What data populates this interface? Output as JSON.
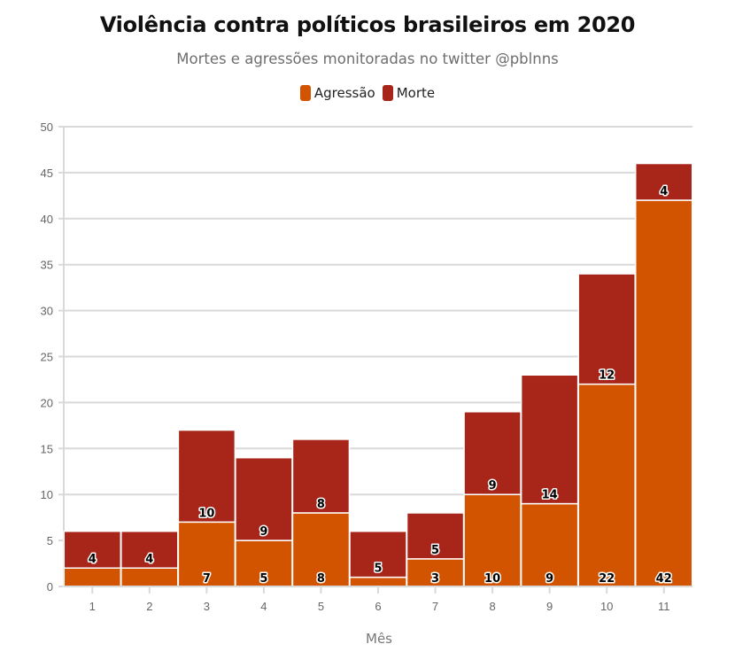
{
  "chart_data": {
    "type": "bar",
    "stacked": true,
    "title": "Violência contra políticos brasileiros em 2020",
    "subtitle": "Mortes e agressões monitoradas no twitter @pblnns",
    "xlabel": "Mês",
    "ylabel": "",
    "categories": [
      "1",
      "2",
      "3",
      "4",
      "5",
      "6",
      "7",
      "8",
      "9",
      "10",
      "11"
    ],
    "series": [
      {
        "name": "Agressão",
        "color": "#d35400",
        "values": [
          2,
          2,
          7,
          5,
          8,
          1,
          3,
          10,
          9,
          22,
          42
        ],
        "show_labels": [
          false,
          false,
          true,
          true,
          true,
          false,
          true,
          true,
          true,
          true,
          true
        ]
      },
      {
        "name": "Morte",
        "color": "#a8251a",
        "values": [
          4,
          4,
          10,
          9,
          8,
          5,
          5,
          9,
          14,
          12,
          4
        ],
        "show_labels": [
          true,
          true,
          true,
          true,
          true,
          true,
          true,
          true,
          true,
          true,
          true
        ]
      }
    ],
    "ylim": [
      0,
      50
    ],
    "yticks": [
      0,
      5,
      10,
      15,
      20,
      25,
      30,
      35,
      40,
      45,
      50
    ],
    "grid": true,
    "legend_position": "top-center"
  }
}
